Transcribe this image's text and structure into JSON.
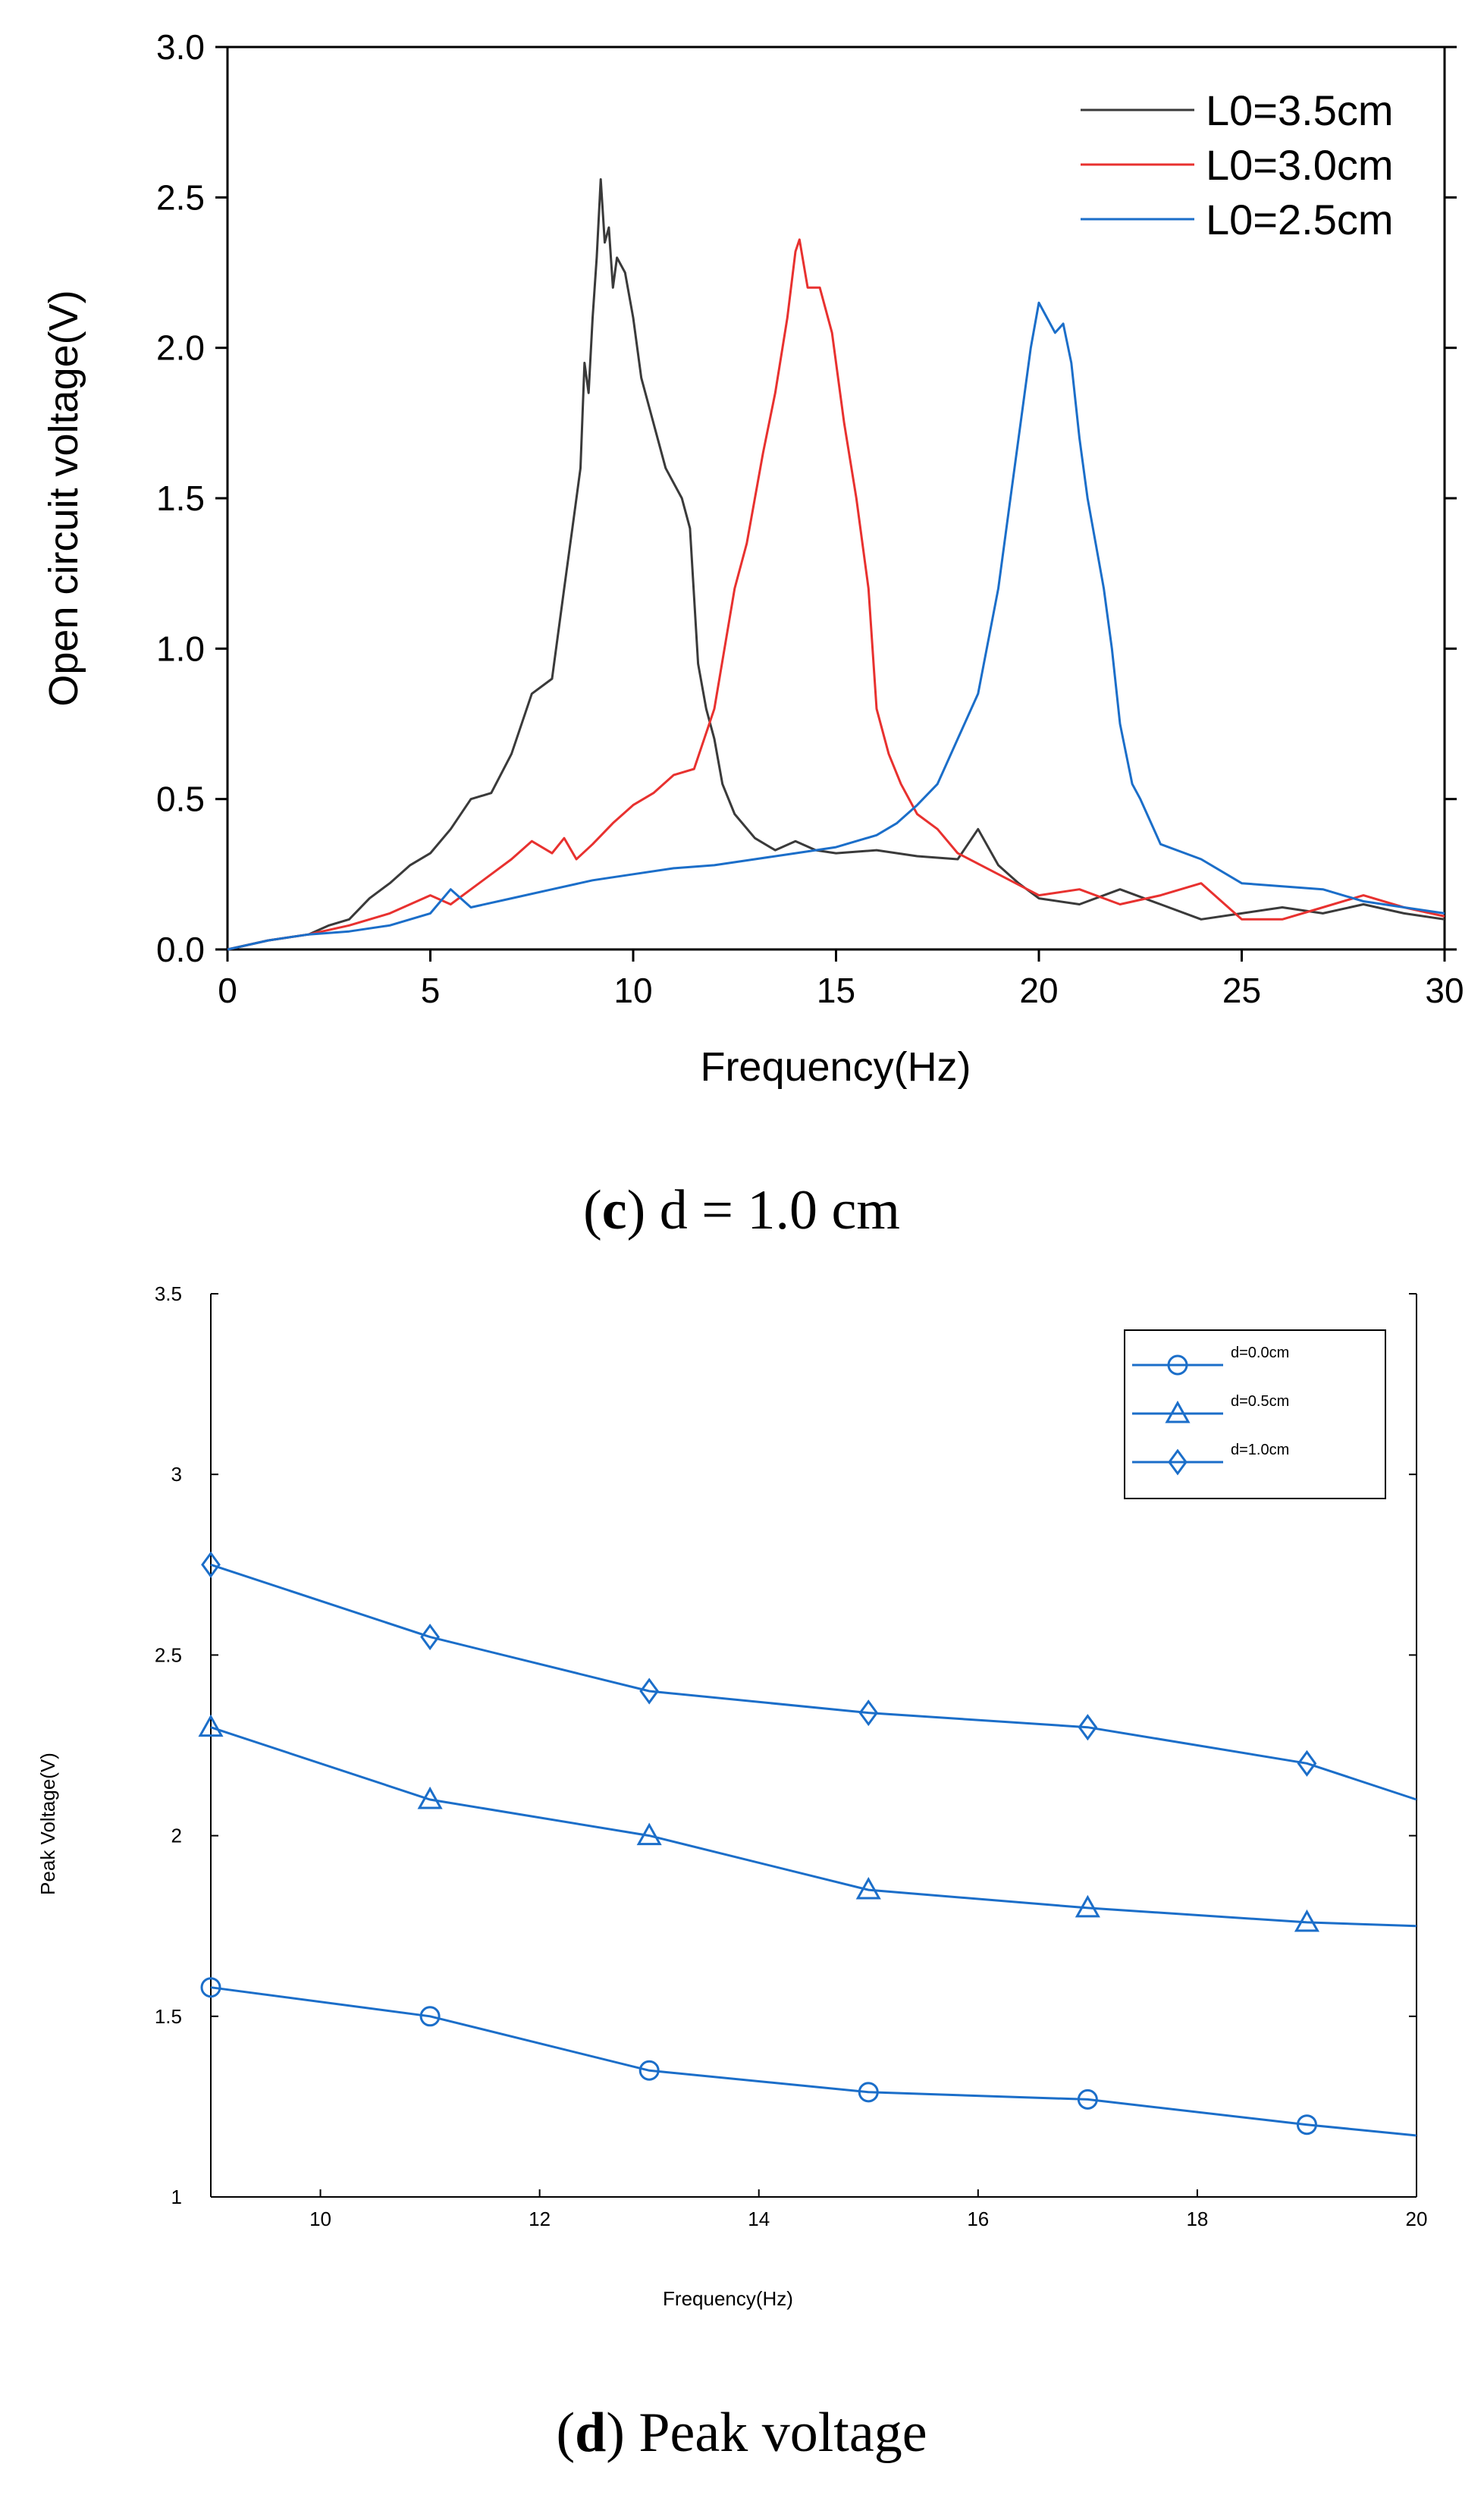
{
  "chart_data": [
    {
      "type": "line",
      "xlabel": "Frequency(Hz)",
      "ylabel": "Open circuit voltage(V)",
      "xlim": [
        0,
        30
      ],
      "ylim": [
        0,
        3.0
      ],
      "xticks": [
        "0",
        "5",
        "10",
        "15",
        "20",
        "25",
        "30"
      ],
      "yticks": [
        "0.0",
        "0.5",
        "1.0",
        "1.5",
        "2.0",
        "2.5",
        "3.0"
      ],
      "legend_position": "top-right",
      "caption": {
        "bold": "c",
        "text": " d = 1.0 cm"
      },
      "series": [
        {
          "name": "L0=3.5cm",
          "color": "#3a3a3a",
          "x": [
            0,
            1,
            2,
            2.5,
            3,
            3.5,
            4,
            4.5,
            5,
            5.5,
            6,
            6.5,
            7,
            7.5,
            8,
            8.3,
            8.5,
            8.7,
            8.8,
            8.9,
            9,
            9.1,
            9.2,
            9.3,
            9.4,
            9.5,
            9.6,
            9.8,
            10,
            10.2,
            10.4,
            10.6,
            10.8,
            11,
            11.2,
            11.4,
            11.6,
            11.8,
            12,
            12.2,
            12.5,
            13,
            13.5,
            14,
            14.5,
            15,
            16,
            17,
            18,
            18.5,
            19,
            19.5,
            20,
            21,
            22,
            23,
            24,
            25,
            26,
            27,
            28,
            29,
            30
          ],
          "values": [
            0,
            0.03,
            0.05,
            0.08,
            0.1,
            0.17,
            0.22,
            0.28,
            0.32,
            0.4,
            0.5,
            0.52,
            0.65,
            0.85,
            0.9,
            1.2,
            1.4,
            1.6,
            1.95,
            1.85,
            2.1,
            2.3,
            2.56,
            2.35,
            2.4,
            2.2,
            2.3,
            2.25,
            2.1,
            1.9,
            1.8,
            1.7,
            1.6,
            1.55,
            1.5,
            1.4,
            0.95,
            0.8,
            0.7,
            0.55,
            0.45,
            0.37,
            0.33,
            0.36,
            0.33,
            0.32,
            0.33,
            0.31,
            0.3,
            0.4,
            0.28,
            0.22,
            0.17,
            0.15,
            0.2,
            0.15,
            0.1,
            0.12,
            0.14,
            0.12,
            0.15,
            0.12,
            0.1
          ]
        },
        {
          "name": "L0=3.0cm",
          "color": "#e8312f",
          "x": [
            0,
            1,
            2,
            3,
            4,
            5,
            5.5,
            6,
            7,
            7.5,
            8,
            8.3,
            8.6,
            9,
            9.5,
            10,
            10.5,
            11,
            11.5,
            12,
            12.5,
            12.8,
            13,
            13.2,
            13.5,
            13.8,
            14,
            14.1,
            14.3,
            14.6,
            14.9,
            15.2,
            15.5,
            15.8,
            16,
            16.3,
            16.6,
            17,
            17.5,
            18,
            19,
            20,
            21,
            22,
            23,
            24,
            25,
            26,
            27,
            28,
            29,
            30
          ],
          "values": [
            0,
            0.03,
            0.05,
            0.08,
            0.12,
            0.18,
            0.15,
            0.2,
            0.3,
            0.36,
            0.32,
            0.37,
            0.3,
            0.35,
            0.42,
            0.48,
            0.52,
            0.58,
            0.6,
            0.8,
            1.2,
            1.35,
            1.5,
            1.65,
            1.85,
            2.1,
            2.32,
            2.36,
            2.2,
            2.2,
            2.05,
            1.75,
            1.5,
            1.2,
            0.8,
            0.65,
            0.55,
            0.45,
            0.4,
            0.32,
            0.25,
            0.18,
            0.2,
            0.15,
            0.18,
            0.22,
            0.1,
            0.1,
            0.14,
            0.18,
            0.14,
            0.11
          ]
        },
        {
          "name": "L0=2.5cm",
          "color": "#1b6ec9",
          "x": [
            0,
            1,
            2,
            3,
            4,
            5,
            5.5,
            6,
            7,
            8,
            9,
            10,
            11,
            12,
            13,
            14,
            15,
            16,
            16.5,
            17,
            17.5,
            18,
            18.5,
            19,
            19.3,
            19.6,
            19.8,
            20,
            20.2,
            20.4,
            20.6,
            20.8,
            21,
            21.2,
            21.4,
            21.6,
            21.8,
            22,
            22.3,
            22.5,
            23,
            24,
            25,
            26,
            27,
            28,
            29,
            30
          ],
          "values": [
            0,
            0.03,
            0.05,
            0.06,
            0.08,
            0.12,
            0.2,
            0.14,
            0.17,
            0.2,
            0.23,
            0.25,
            0.27,
            0.28,
            0.3,
            0.32,
            0.34,
            0.38,
            0.42,
            0.48,
            0.55,
            0.7,
            0.85,
            1.2,
            1.5,
            1.8,
            2.0,
            2.15,
            2.1,
            2.05,
            2.08,
            1.95,
            1.7,
            1.5,
            1.35,
            1.2,
            1.0,
            0.75,
            0.55,
            0.5,
            0.35,
            0.3,
            0.22,
            0.21,
            0.2,
            0.16,
            0.14,
            0.12
          ]
        }
      ]
    },
    {
      "type": "line",
      "xlabel": "Frequency(Hz)",
      "ylabel": "Peak Voltage(V)",
      "xlim": [
        9,
        20
      ],
      "ylim": [
        1,
        3.5
      ],
      "xticks": [
        "10",
        "12",
        "14",
        "16",
        "18",
        "20"
      ],
      "yticks": [
        "1",
        "1.5",
        "2",
        "2.5",
        "3",
        "3.5"
      ],
      "legend_position": "top-right",
      "caption": {
        "bold": "d",
        "text": " Peak voltage"
      },
      "color": "#1b6ec9",
      "series": [
        {
          "name": "d=0.0cm",
          "marker": "circle",
          "x": [
            9,
            11,
            13,
            15,
            17,
            19,
            20
          ],
          "values": [
            1.58,
            1.5,
            1.35,
            1.29,
            1.27,
            1.2,
            1.17
          ],
          "marked": [
            true,
            true,
            true,
            true,
            true,
            true,
            false
          ]
        },
        {
          "name": "d=0.5cm",
          "marker": "triangle",
          "x": [
            9,
            11,
            13,
            15,
            17,
            19,
            20
          ],
          "values": [
            2.3,
            2.1,
            2.0,
            1.85,
            1.8,
            1.76,
            1.75
          ],
          "marked": [
            true,
            true,
            true,
            true,
            true,
            true,
            false
          ]
        },
        {
          "name": "d=1.0cm",
          "marker": "diamond",
          "x": [
            9,
            11,
            13,
            15,
            17,
            19,
            20
          ],
          "values": [
            2.75,
            2.55,
            2.4,
            2.34,
            2.3,
            2.2,
            2.1
          ],
          "marked": [
            true,
            true,
            true,
            true,
            true,
            true,
            false
          ]
        }
      ]
    }
  ]
}
